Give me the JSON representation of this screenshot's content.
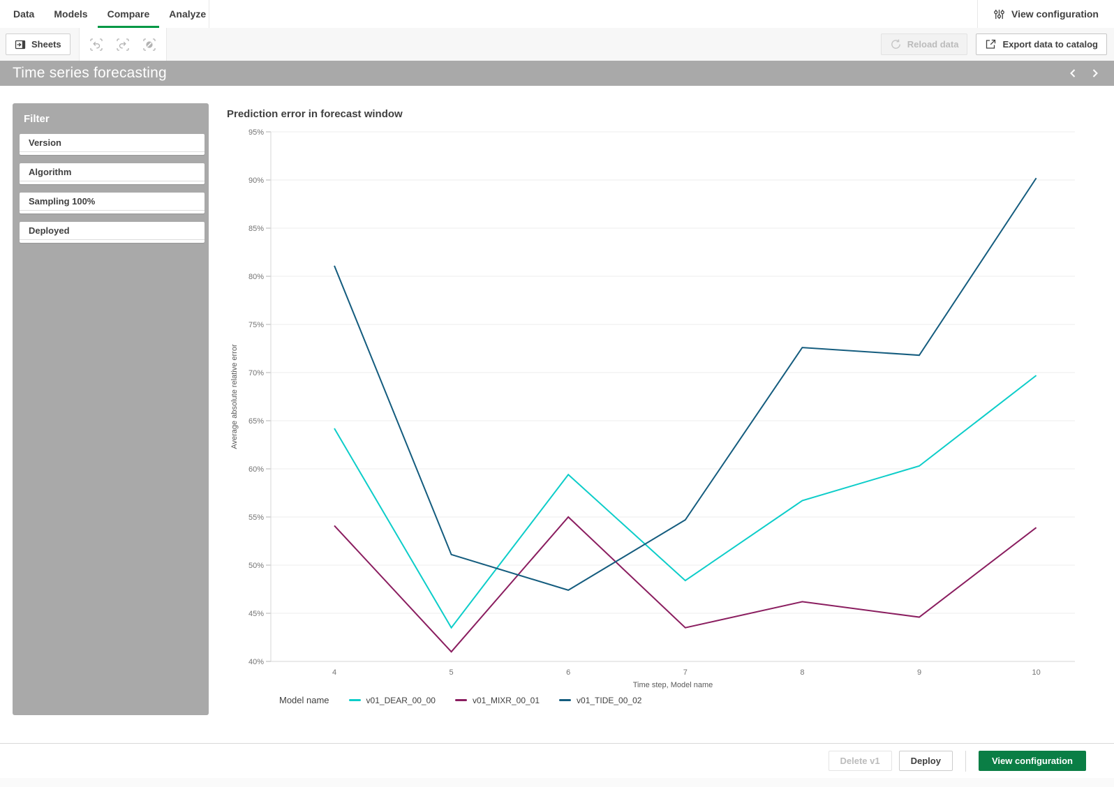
{
  "nav": {
    "tabs": [
      {
        "label": "Data",
        "active": false
      },
      {
        "label": "Models",
        "active": false
      },
      {
        "label": "Compare",
        "active": true
      },
      {
        "label": "Analyze",
        "active": false
      }
    ],
    "view_configuration_label": "View configuration"
  },
  "toolbar": {
    "sheets_label": "Sheets",
    "reload_label": "Reload data",
    "export_label": "Export data to catalog"
  },
  "banner": {
    "title": "Time series forecasting"
  },
  "filter": {
    "title": "Filter",
    "items": [
      "Version",
      "Algorithm",
      "Sampling 100%",
      "Deployed"
    ]
  },
  "chart_data": {
    "type": "line",
    "title": "Prediction error in forecast window",
    "x": [
      4,
      5,
      6,
      7,
      8,
      9,
      10
    ],
    "xlabel": "Time step, Model name",
    "ylabel": "Average absolute relative error",
    "ylim": [
      40,
      95
    ],
    "ytick_step": 5,
    "ytick_suffix": "%",
    "grid": true,
    "legend_title": "Model name",
    "legend_position": "bottom",
    "series": [
      {
        "name": "v01_DEAR_00_00",
        "color": "#0dcdc9",
        "values": [
          64.2,
          43.5,
          59.4,
          48.4,
          56.7,
          60.3,
          69.7
        ]
      },
      {
        "name": "v01_MIXR_00_01",
        "color": "#8a1d5f",
        "values": [
          54.1,
          41.0,
          55.0,
          43.5,
          46.2,
          44.6,
          53.9
        ]
      },
      {
        "name": "v01_TIDE_00_02",
        "color": "#145c7e",
        "values": [
          81.1,
          51.1,
          47.4,
          54.7,
          72.6,
          71.8,
          90.2
        ]
      }
    ]
  },
  "footer": {
    "delete_label": "Delete v1",
    "deploy_label": "Deploy",
    "view_configuration_label": "View configuration"
  },
  "colors": {
    "accent_green": "#009845",
    "primary_button_green": "#0a7e45",
    "banner_gray": "#a9a9a9"
  }
}
